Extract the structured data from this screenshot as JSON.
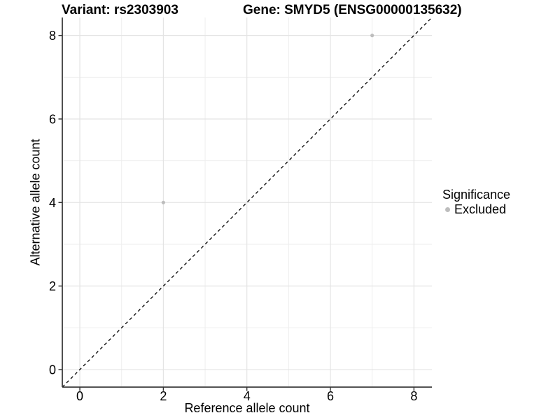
{
  "titles": {
    "variant": "Variant: rs2303903",
    "gene": "Gene: SMYD5 (ENSG00000135632)"
  },
  "legend": {
    "title": "Significance",
    "items": [
      {
        "label": "Excluded",
        "color": "#bdbdbd"
      }
    ]
  },
  "chart_data": {
    "type": "scatter",
    "title_left": "Variant: rs2303903",
    "title_right": "Gene: SMYD5 (ENSG00000135632)",
    "xlabel": "Reference allele count",
    "ylabel": "Alternative allele count",
    "xlim": [
      -0.42,
      8.43
    ],
    "ylim": [
      -0.42,
      8.43
    ],
    "x_ticks": [
      0,
      2,
      4,
      6,
      8
    ],
    "y_ticks": [
      0,
      2,
      4,
      6,
      8
    ],
    "x_minor_ticks": [
      1,
      3,
      5,
      7
    ],
    "y_minor_ticks": [
      1,
      3,
      5,
      7
    ],
    "grid": "major+minor",
    "legend_position": "right-center",
    "series": [
      {
        "name": "Excluded",
        "color": "#bdbdbd",
        "points": [
          [
            2,
            4
          ],
          [
            7,
            8
          ]
        ]
      }
    ],
    "reference_line": {
      "kind": "identity y=x",
      "style": "dashed",
      "color": "#000000"
    }
  },
  "colors": {
    "background": "#ffffff",
    "grid_major": "#e4e4e4",
    "grid_minor": "#eeeeee",
    "axis_line": "#3c3c3c",
    "tick_mark": "#333333",
    "text": "#000000",
    "excluded_point": "#bdbdbd"
  }
}
